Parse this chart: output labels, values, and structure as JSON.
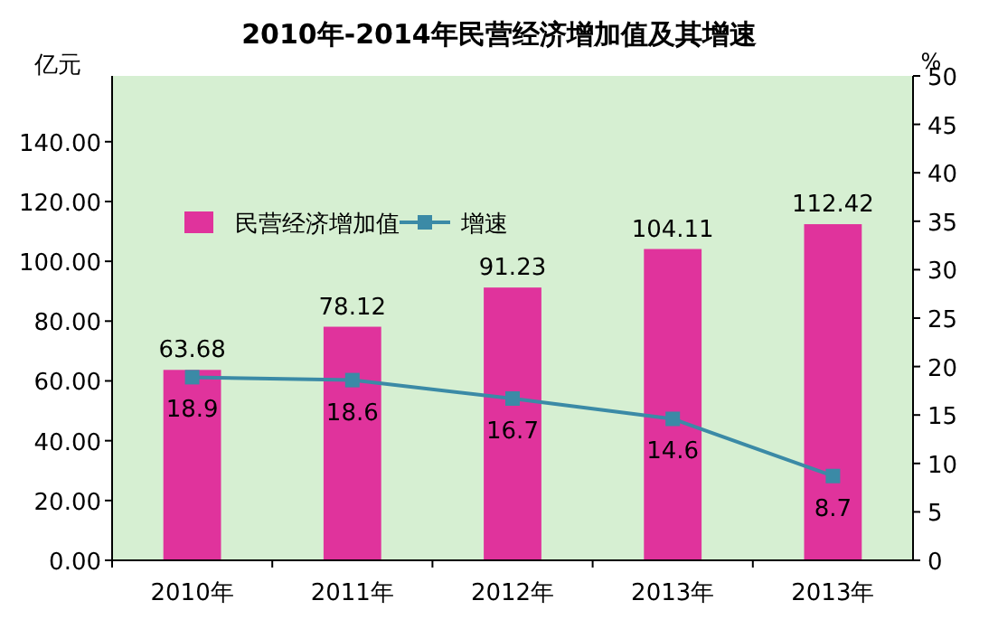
{
  "chart_data": {
    "type": "bar",
    "title": "2010年-2014年民营经济增加值及其增速",
    "ylabel": "亿元",
    "y2label": "%",
    "categories": [
      "2010年",
      "2011年",
      "2012年",
      "2013年",
      "2013年"
    ],
    "series": [
      {
        "name": "民营经济增加值",
        "color": "#e0339c",
        "values": [
          63.68,
          78.12,
          91.23,
          104.11,
          112.42
        ],
        "value_labels": [
          "63.68",
          "78.12",
          "91.23",
          "104.11",
          "112.42"
        ]
      },
      {
        "name": "增速",
        "type": "line",
        "axis": "y2",
        "color": "#3b8aa6",
        "marker": "square",
        "values": [
          18.9,
          18.6,
          16.7,
          14.6,
          8.7
        ],
        "value_labels": [
          "18.9",
          "18.6",
          "16.7",
          "14.6",
          "8.7"
        ]
      }
    ],
    "ylim": [
      0,
      162
    ],
    "yticks": [
      {
        "value": 0,
        "label": "0.00"
      },
      {
        "value": 20,
        "label": "20.00"
      },
      {
        "value": 40,
        "label": "40.00"
      },
      {
        "value": 60,
        "label": "60.00"
      },
      {
        "value": 80,
        "label": "80.00"
      },
      {
        "value": 100,
        "label": "100.00"
      },
      {
        "value": 120,
        "label": "120.00"
      },
      {
        "value": 140,
        "label": "140.00"
      }
    ],
    "y2lim": [
      0,
      50
    ],
    "y2ticks": [
      0,
      5,
      10,
      15,
      20,
      25,
      30,
      35,
      40,
      45,
      50
    ],
    "legend": "top left"
  }
}
